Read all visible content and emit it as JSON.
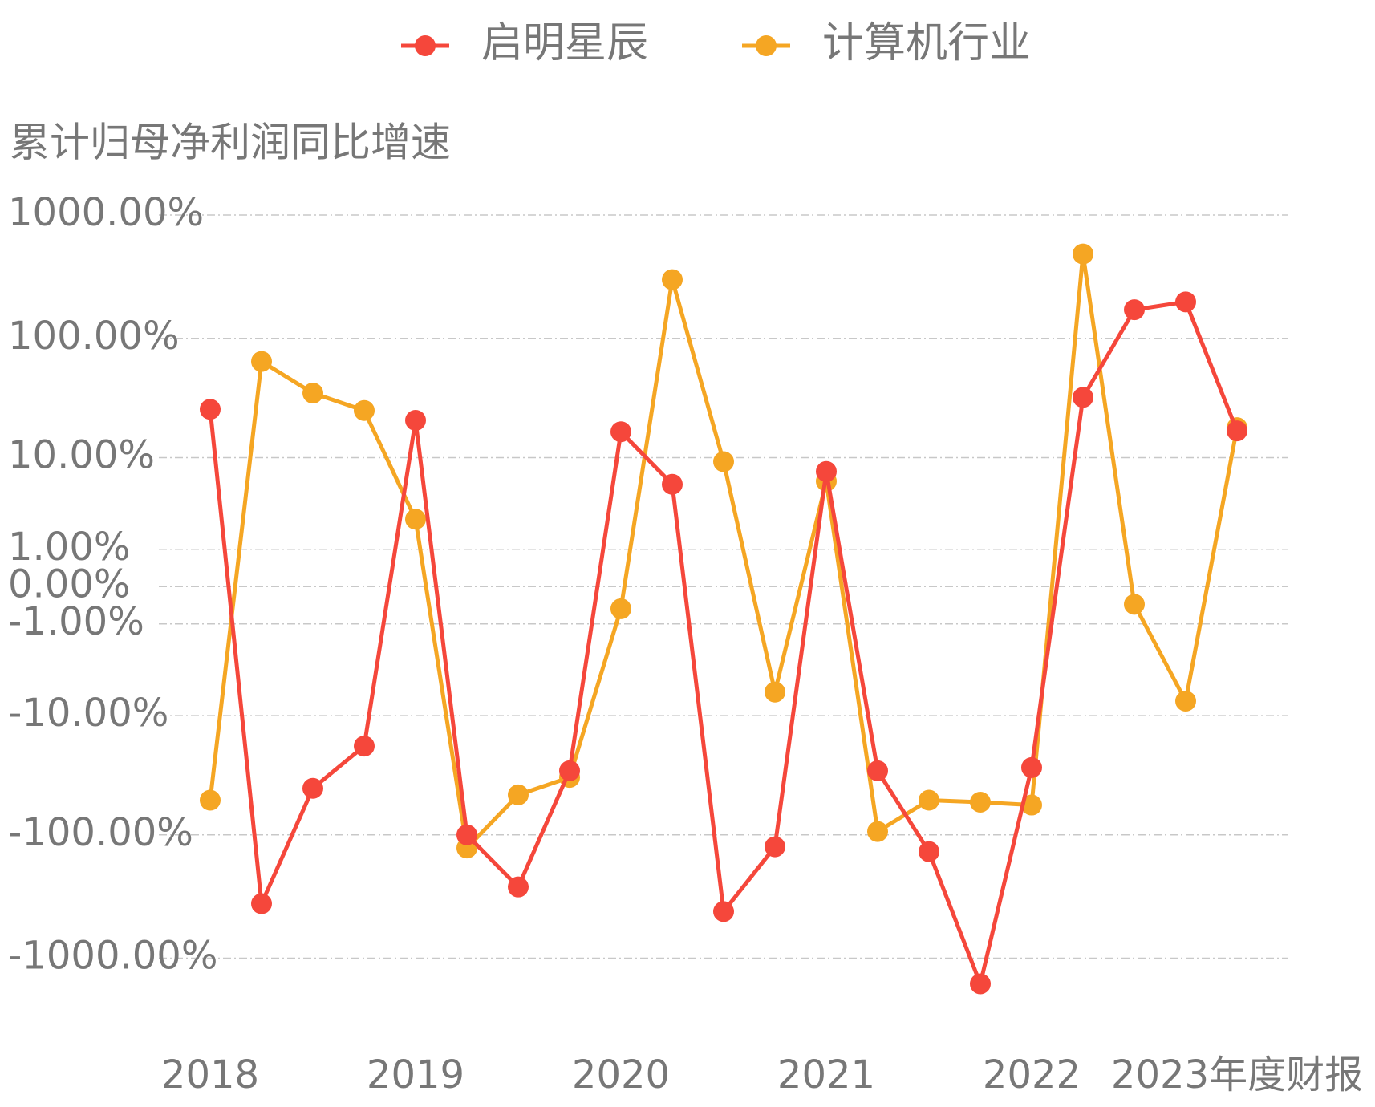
{
  "chart_data": {
    "type": "line",
    "y_label": "累计归母净利润同比增速",
    "categories": [
      "2018",
      null,
      null,
      null,
      "2019",
      null,
      null,
      null,
      "2020",
      null,
      null,
      null,
      "2021",
      null,
      null,
      null,
      "2022",
      null,
      null,
      null,
      "2023年度财报"
    ],
    "yscale": "symlog",
    "ylim": [
      -2000,
      1000
    ],
    "yticks": [
      {
        "value": 1000,
        "label": "1000.00%"
      },
      {
        "value": 100,
        "label": "100.00%"
      },
      {
        "value": 10,
        "label": "10.00%"
      },
      {
        "value": 1,
        "label": "1.00%"
      },
      {
        "value": 0,
        "label": "0.00%"
      },
      {
        "value": -1,
        "label": "-1.00%"
      },
      {
        "value": -10,
        "label": "-10.00%"
      },
      {
        "value": -100,
        "label": "-100.00%"
      },
      {
        "value": -1000,
        "label": "-1000.00%"
      }
    ],
    "grid": true,
    "legend": "top",
    "series": [
      {
        "name": "启明星辰",
        "color": "#f5473b",
        "values": [
          26,
          -362,
          -41.5,
          -18.4,
          21,
          -100,
          -265,
          -29.7,
          16.8,
          5.7,
          -419,
          -125,
          7.5,
          -29.7,
          -137,
          -1610,
          -27.9,
          32.7,
          171,
          198,
          17.1
        ]
      },
      {
        "name": "计算机行业",
        "color": "#f5a623",
        "values": [
          -52,
          64.7,
          35.5,
          25.4,
          2.5,
          -128,
          -47,
          -33.7,
          -0.51,
          300,
          9.2,
          -6.1,
          6.1,
          -94,
          -52,
          -54,
          -57,
          484,
          -0.39,
          -7.4,
          18.2
        ]
      }
    ]
  }
}
